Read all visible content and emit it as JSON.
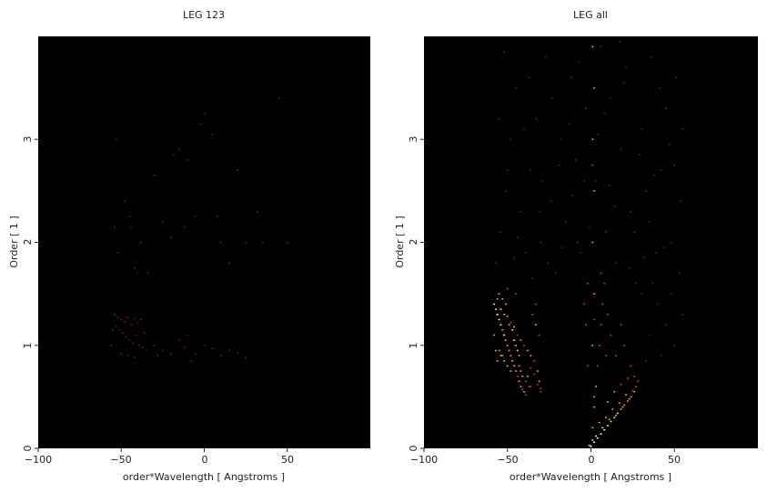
{
  "chart_data": [
    {
      "type": "heatmap",
      "title": "LEG 123",
      "xlabel": "order*Wavelength [ Angstroms ]",
      "ylabel": "Order [ 1 ]",
      "xlim": [
        -100,
        100
      ],
      "ylim": [
        0,
        4
      ],
      "xticks": [
        "−100",
        "−50",
        "0",
        "50"
      ],
      "yticks": [
        "0",
        "1",
        "2",
        "3"
      ],
      "background_color": "#000000",
      "colormap": [
        "#000000",
        "#6e1800",
        "#c44000",
        "#ff9a20",
        "#ffe58a",
        "#ffffff"
      ],
      "bin_width": [
        1.1,
        0.013
      ],
      "points": [
        [
          -54,
          1.3,
          1
        ],
        [
          -52,
          1.27,
          1
        ],
        [
          -50,
          1.25,
          1
        ],
        [
          -48,
          1.23,
          1
        ],
        [
          -46,
          1.27,
          1
        ],
        [
          -44,
          1.2,
          1
        ],
        [
          -42,
          1.26,
          1
        ],
        [
          -40,
          1.22,
          1
        ],
        [
          -38,
          1.25,
          1
        ],
        [
          -53,
          1.18,
          1
        ],
        [
          -51,
          1.15,
          1
        ],
        [
          -49,
          1.12,
          1
        ],
        [
          -47,
          1.08,
          1
        ],
        [
          -45,
          1.05,
          1
        ],
        [
          -43,
          1.02,
          1
        ],
        [
          -41,
          1.1,
          1
        ],
        [
          -39,
          1.0,
          1
        ],
        [
          -37,
          0.98,
          1
        ],
        [
          -35,
          0.95,
          1
        ],
        [
          -50,
          0.92,
          1
        ],
        [
          -46,
          0.9,
          1
        ],
        [
          -42,
          0.88,
          1
        ],
        [
          -30,
          1.0,
          1
        ],
        [
          -25,
          0.95,
          1
        ],
        [
          -20,
          0.92,
          1
        ],
        [
          -15,
          1.05,
          1
        ],
        [
          -12,
          0.98,
          1
        ],
        [
          -10,
          1.1,
          1
        ],
        [
          -5,
          0.92,
          1
        ],
        [
          0,
          1.0,
          1
        ],
        [
          5,
          0.97,
          1
        ],
        [
          10,
          0.9,
          1
        ],
        [
          15,
          0.95,
          1
        ],
        [
          20,
          0.93,
          1
        ],
        [
          25,
          0.88,
          1
        ],
        [
          -55,
          1.15,
          1
        ],
        [
          -36,
          1.12,
          1
        ],
        [
          -28,
          0.9,
          1
        ],
        [
          -8,
          0.85,
          1
        ],
        [
          -56,
          1.0,
          1
        ],
        [
          -54,
          2.15,
          1
        ],
        [
          -52,
          1.9,
          1
        ],
        [
          -48,
          2.4,
          1
        ],
        [
          -45,
          2.25,
          1
        ],
        [
          -42,
          1.75,
          1
        ],
        [
          -40,
          1.7,
          1
        ],
        [
          -38,
          2.0,
          1
        ],
        [
          -34,
          1.7,
          1
        ],
        [
          -30,
          2.65,
          1
        ],
        [
          -25,
          2.2,
          1
        ],
        [
          -20,
          2.05,
          1
        ],
        [
          -18,
          2.85,
          1
        ],
        [
          -12,
          2.15,
          1
        ],
        [
          -10,
          2.8,
          1
        ],
        [
          -5,
          2.25,
          1
        ],
        [
          -2,
          3.15,
          1
        ],
        [
          0,
          3.25,
          1
        ],
        [
          5,
          3.05,
          1
        ],
        [
          8,
          2.25,
          1
        ],
        [
          10,
          2.0,
          1
        ],
        [
          15,
          1.8,
          1
        ],
        [
          20,
          2.7,
          1
        ],
        [
          25,
          2.0,
          1
        ],
        [
          32,
          2.3,
          1
        ],
        [
          45,
          3.4,
          1
        ],
        [
          50,
          2.0,
          1
        ],
        [
          -53,
          3.0,
          1
        ],
        [
          -15,
          2.9,
          1
        ],
        [
          35,
          2.0,
          1
        ],
        [
          -44,
          2.15,
          1
        ]
      ]
    },
    {
      "type": "heatmap",
      "title": "LEG all",
      "xlabel": "order*Wavelength [ Angstroms ]",
      "ylabel": "Order [ 1 ]",
      "xlim": [
        -100,
        100
      ],
      "ylim": [
        0,
        4
      ],
      "xticks": [
        "−100",
        "−50",
        "0",
        "50"
      ],
      "yticks": [
        "0",
        "1",
        "2",
        "3"
      ],
      "background_color": "#000000",
      "colormap": [
        "#000000",
        "#6e1800",
        "#c44000",
        "#ff9a20",
        "#ffe58a",
        "#ffffff"
      ],
      "bin_width": [
        1.1,
        0.013
      ],
      "points": [
        [
          -58,
          1.4,
          4
        ],
        [
          -57,
          1.35,
          4
        ],
        [
          -56,
          1.3,
          5
        ],
        [
          -55,
          1.25,
          4
        ],
        [
          -54,
          1.2,
          4
        ],
        [
          -53,
          1.15,
          3
        ],
        [
          -52,
          1.1,
          4
        ],
        [
          -51,
          1.05,
          3
        ],
        [
          -50,
          1.0,
          3
        ],
        [
          -49,
          0.95,
          3
        ],
        [
          -48,
          0.9,
          3
        ],
        [
          -47,
          0.85,
          3
        ],
        [
          -46,
          0.8,
          3
        ],
        [
          -45,
          0.75,
          3
        ],
        [
          -44,
          0.7,
          2
        ],
        [
          -43,
          0.65,
          3
        ],
        [
          -42,
          0.6,
          3
        ],
        [
          -41,
          0.57,
          2
        ],
        [
          -40,
          0.55,
          3
        ],
        [
          -39,
          0.52,
          2
        ],
        [
          -56,
          1.45,
          3
        ],
        [
          -54,
          1.35,
          4
        ],
        [
          -52,
          1.3,
          3
        ],
        [
          -50,
          1.28,
          3
        ],
        [
          -48,
          1.22,
          2
        ],
        [
          -46,
          1.18,
          3
        ],
        [
          -44,
          1.1,
          2
        ],
        [
          -42,
          1.05,
          3
        ],
        [
          -40,
          1.0,
          2
        ],
        [
          -38,
          0.95,
          3
        ],
        [
          -36,
          0.9,
          3
        ],
        [
          -34,
          0.85,
          2
        ],
        [
          -32,
          0.75,
          3
        ],
        [
          -31,
          0.65,
          3
        ],
        [
          -30,
          0.55,
          2
        ],
        [
          -58,
          1.1,
          3
        ],
        [
          -57,
          0.95,
          3
        ],
        [
          -56,
          0.85,
          3
        ],
        [
          -55,
          1.5,
          3
        ],
        [
          -50,
          1.55,
          2
        ],
        [
          -35,
          1.3,
          2
        ],
        [
          -33,
          1.2,
          3
        ],
        [
          -31,
          1.1,
          2
        ],
        [
          -33,
          1.4,
          2
        ],
        [
          -45,
          1.5,
          2
        ],
        [
          -53,
          0.9,
          3
        ],
        [
          -48,
          0.75,
          3
        ],
        [
          -43,
          0.8,
          3
        ],
        [
          -38,
          0.7,
          3
        ],
        [
          -36,
          0.6,
          2
        ],
        [
          0,
          0.02,
          5
        ],
        [
          2,
          0.06,
          5
        ],
        [
          4,
          0.1,
          5
        ],
        [
          6,
          0.14,
          5
        ],
        [
          8,
          0.18,
          5
        ],
        [
          10,
          0.22,
          4
        ],
        [
          12,
          0.26,
          4
        ],
        [
          14,
          0.3,
          4
        ],
        [
          16,
          0.34,
          4
        ],
        [
          18,
          0.38,
          3
        ],
        [
          20,
          0.42,
          3
        ],
        [
          22,
          0.46,
          3
        ],
        [
          24,
          0.5,
          3
        ],
        [
          26,
          0.55,
          3
        ],
        [
          27,
          0.6,
          2
        ],
        [
          28,
          0.65,
          2
        ],
        [
          3,
          0.12,
          4
        ],
        [
          7,
          0.2,
          4
        ],
        [
          11,
          0.28,
          3
        ],
        [
          15,
          0.32,
          3
        ],
        [
          19,
          0.4,
          3
        ],
        [
          23,
          0.48,
          3
        ],
        [
          25,
          0.56,
          2
        ],
        [
          9,
          0.3,
          3
        ],
        [
          13,
          0.38,
          3
        ],
        [
          17,
          0.44,
          3
        ],
        [
          21,
          0.52,
          3
        ],
        [
          -1,
          0.03,
          4
        ],
        [
          1,
          0.08,
          4
        ],
        [
          5,
          0.25,
          3
        ],
        [
          10,
          0.45,
          3
        ],
        [
          14,
          0.55,
          3
        ],
        [
          18,
          0.62,
          2
        ],
        [
          22,
          0.68,
          2
        ],
        [
          26,
          0.7,
          2
        ],
        [
          1,
          0.2,
          3
        ],
        [
          2,
          0.4,
          3
        ],
        [
          3,
          0.6,
          3
        ],
        [
          4,
          0.8,
          2
        ],
        [
          5,
          1.0,
          2
        ],
        [
          6,
          1.2,
          2
        ],
        [
          7,
          1.4,
          2
        ],
        [
          8,
          1.6,
          2
        ],
        [
          10,
          1.3,
          2
        ],
        [
          12,
          1.1,
          2
        ],
        [
          15,
          0.9,
          2
        ],
        [
          18,
          1.2,
          2
        ],
        [
          20,
          1.0,
          2
        ],
        [
          24,
          0.8,
          2
        ],
        [
          -2,
          0.8,
          2
        ],
        [
          -3,
          1.2,
          2
        ],
        [
          -4,
          1.4,
          2
        ],
        [
          -2,
          1.6,
          2
        ],
        [
          6,
          1.7,
          2
        ],
        [
          9,
          0.9,
          2
        ],
        [
          -57,
          1.8,
          1
        ],
        [
          -54,
          2.1,
          1
        ],
        [
          -51,
          2.5,
          1
        ],
        [
          -48,
          3.0,
          1
        ],
        [
          -45,
          3.5,
          1
        ],
        [
          -42,
          2.3,
          1
        ],
        [
          -39,
          1.9,
          1
        ],
        [
          -36,
          2.7,
          1
        ],
        [
          -33,
          3.2,
          1
        ],
        [
          -30,
          2.0,
          1
        ],
        [
          -27,
          3.8,
          1
        ],
        [
          -24,
          2.4,
          1
        ],
        [
          -21,
          1.7,
          1
        ],
        [
          -18,
          3.0,
          1
        ],
        [
          -15,
          2.2,
          1
        ],
        [
          -12,
          3.6,
          1
        ],
        [
          -9,
          2.8,
          1
        ],
        [
          -6,
          1.9,
          1
        ],
        [
          -3,
          3.3,
          1
        ],
        [
          3,
          2.6,
          1
        ],
        [
          6,
          3.9,
          1
        ],
        [
          9,
          2.1,
          1
        ],
        [
          12,
          3.4,
          1
        ],
        [
          15,
          1.8,
          1
        ],
        [
          18,
          2.9,
          1
        ],
        [
          21,
          3.7,
          1
        ],
        [
          24,
          2.3,
          1
        ],
        [
          27,
          1.6,
          1
        ],
        [
          30,
          3.1,
          1
        ],
        [
          33,
          2.5,
          1
        ],
        [
          36,
          3.8,
          1
        ],
        [
          39,
          1.9,
          1
        ],
        [
          42,
          2.7,
          1
        ],
        [
          45,
          3.3,
          1
        ],
        [
          48,
          2.0,
          1
        ],
        [
          51,
          3.6,
          1
        ],
        [
          54,
          2.4,
          1
        ],
        [
          -55,
          3.2,
          1
        ],
        [
          -50,
          2.7,
          1
        ],
        [
          -46,
          1.85,
          1
        ],
        [
          -40,
          3.1,
          1
        ],
        [
          -35,
          1.65,
          1
        ],
        [
          -29,
          2.6,
          1
        ],
        [
          -23,
          3.4,
          1
        ],
        [
          -17,
          1.95,
          1
        ],
        [
          -11,
          2.45,
          1
        ],
        [
          -7,
          3.75,
          1
        ],
        [
          -1,
          2.15,
          1
        ],
        [
          4,
          3.05,
          1
        ],
        [
          11,
          2.55,
          1
        ],
        [
          17,
          3.95,
          1
        ],
        [
          23,
          1.75,
          1
        ],
        [
          29,
          2.85,
          1
        ],
        [
          35,
          2.2,
          1
        ],
        [
          41,
          3.5,
          1
        ],
        [
          47,
          2.95,
          1
        ],
        [
          53,
          1.7,
          1
        ],
        [
          -52,
          3.85,
          1
        ],
        [
          -44,
          2.05,
          1
        ],
        [
          -37,
          3.6,
          1
        ],
        [
          -31,
          2.3,
          1
        ],
        [
          -26,
          1.8,
          1
        ],
        [
          -19,
          2.75,
          1
        ],
        [
          -13,
          3.15,
          1
        ],
        [
          -8,
          2.0,
          1
        ],
        [
          -4,
          2.6,
          1
        ],
        [
          8,
          3.25,
          1
        ],
        [
          14,
          2.35,
          1
        ],
        [
          20,
          3.55,
          1
        ],
        [
          26,
          2.1,
          1
        ],
        [
          32,
          1.85,
          1
        ],
        [
          38,
          2.65,
          1
        ],
        [
          44,
          1.95,
          1
        ],
        [
          50,
          2.75,
          1
        ],
        [
          55,
          3.1,
          1
        ],
        [
          40,
          1.4,
          1
        ],
        [
          45,
          1.2,
          1
        ],
        [
          50,
          1.0,
          1
        ],
        [
          35,
          1.1,
          1
        ],
        [
          55,
          1.3,
          1
        ],
        [
          30,
          1.5,
          1
        ],
        [
          42,
          0.9,
          1
        ],
        [
          37,
          1.6,
          1
        ],
        [
          48,
          1.5,
          1
        ],
        [
          33,
          0.85,
          1
        ],
        [
          2,
          0.5,
          3
        ],
        [
          1,
          1.0,
          3
        ],
        [
          2,
          1.5,
          3
        ],
        [
          1,
          2.0,
          3
        ],
        [
          2,
          2.5,
          3
        ],
        [
          1,
          3.0,
          3
        ],
        [
          2,
          3.5,
          3
        ],
        [
          1,
          3.9,
          3
        ],
        [
          2,
          1.25,
          2
        ],
        [
          1,
          2.75,
          2
        ],
        [
          -45,
          1.0,
          3
        ],
        [
          -44,
          0.95,
          4
        ],
        [
          -43,
          0.9,
          3
        ],
        [
          -47,
          1.15,
          4
        ],
        [
          -46,
          1.05,
          4
        ],
        [
          -49,
          1.2,
          3
        ],
        [
          -51,
          1.4,
          3
        ],
        [
          -53,
          1.45,
          3
        ],
        [
          -42,
          0.75,
          3
        ],
        [
          -41,
          0.7,
          3
        ],
        [
          -39,
          0.65,
          2
        ],
        [
          -37,
          0.6,
          2
        ],
        [
          -36,
          0.78,
          2
        ],
        [
          -34,
          0.72,
          2
        ],
        [
          -32,
          0.62,
          2
        ],
        [
          -30,
          0.58,
          2
        ],
        [
          -55,
          0.95,
          3
        ],
        [
          -54,
          0.9,
          3
        ],
        [
          -52,
          0.85,
          3
        ],
        [
          -50,
          0.8,
          3
        ]
      ]
    }
  ]
}
